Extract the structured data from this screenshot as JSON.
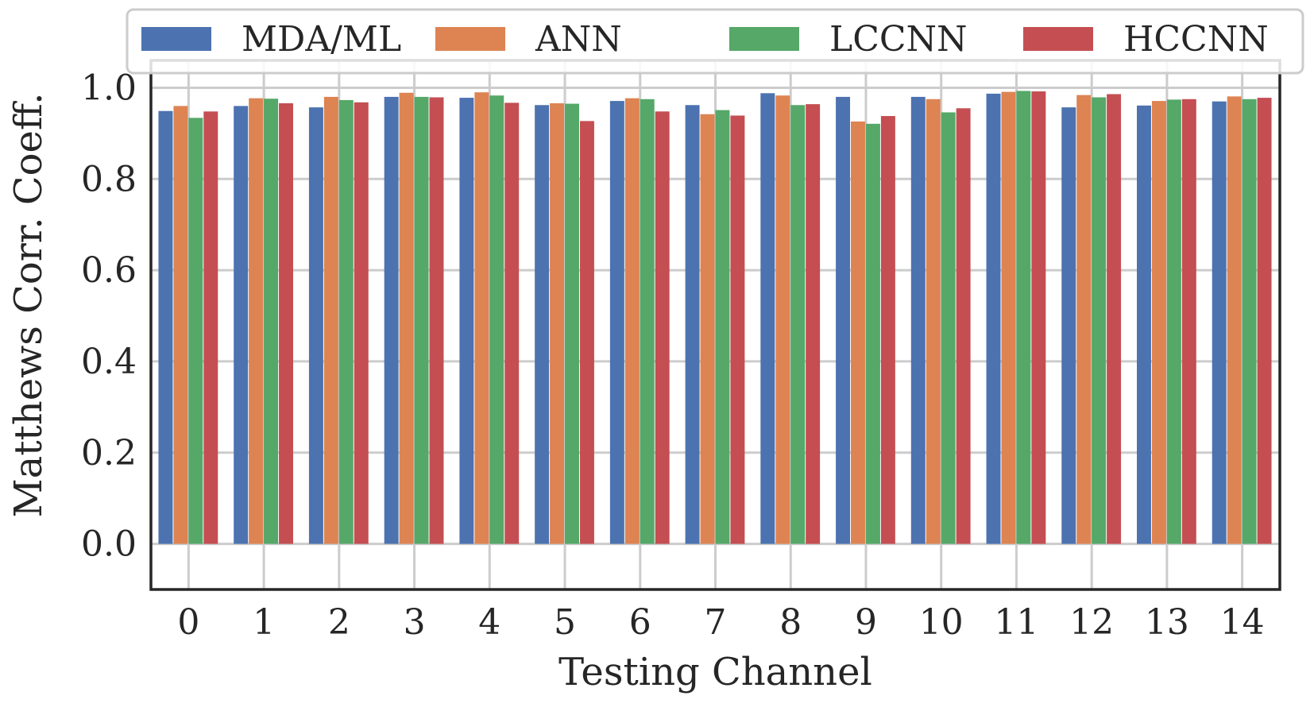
{
  "chart_data": {
    "type": "bar",
    "title": "",
    "xlabel": "Testing Channel",
    "ylabel": "Matthews Corr. Coeff.",
    "ylim": [
      -0.1,
      1.06
    ],
    "yticks": [
      "0.0",
      "0.2",
      "0.4",
      "0.6",
      "0.8",
      "1.0"
    ],
    "grid": true,
    "legend_position": "top",
    "categories": [
      "0",
      "1",
      "2",
      "3",
      "4",
      "5",
      "6",
      "7",
      "8",
      "9",
      "10",
      "11",
      "12",
      "13",
      "14"
    ],
    "series": [
      {
        "name": "MDA/ML",
        "color": "#4c72b0",
        "values": [
          0.949,
          0.96,
          0.957,
          0.98,
          0.978,
          0.962,
          0.971,
          0.962,
          0.988,
          0.98,
          0.98,
          0.987,
          0.957,
          0.961,
          0.97
        ]
      },
      {
        "name": "ANN",
        "color": "#dd8452",
        "values": [
          0.96,
          0.977,
          0.98,
          0.989,
          0.99,
          0.966,
          0.977,
          0.942,
          0.983,
          0.926,
          0.975,
          0.991,
          0.984,
          0.971,
          0.981
        ]
      },
      {
        "name": "LCCNN",
        "color": "#55a868",
        "values": [
          0.934,
          0.976,
          0.973,
          0.98,
          0.983,
          0.965,
          0.975,
          0.951,
          0.962,
          0.921,
          0.946,
          0.993,
          0.979,
          0.974,
          0.975
        ]
      },
      {
        "name": "HCCNN",
        "color": "#c44e52",
        "values": [
          0.948,
          0.966,
          0.968,
          0.979,
          0.967,
          0.927,
          0.948,
          0.939,
          0.964,
          0.938,
          0.955,
          0.992,
          0.986,
          0.975,
          0.978
        ]
      }
    ]
  }
}
